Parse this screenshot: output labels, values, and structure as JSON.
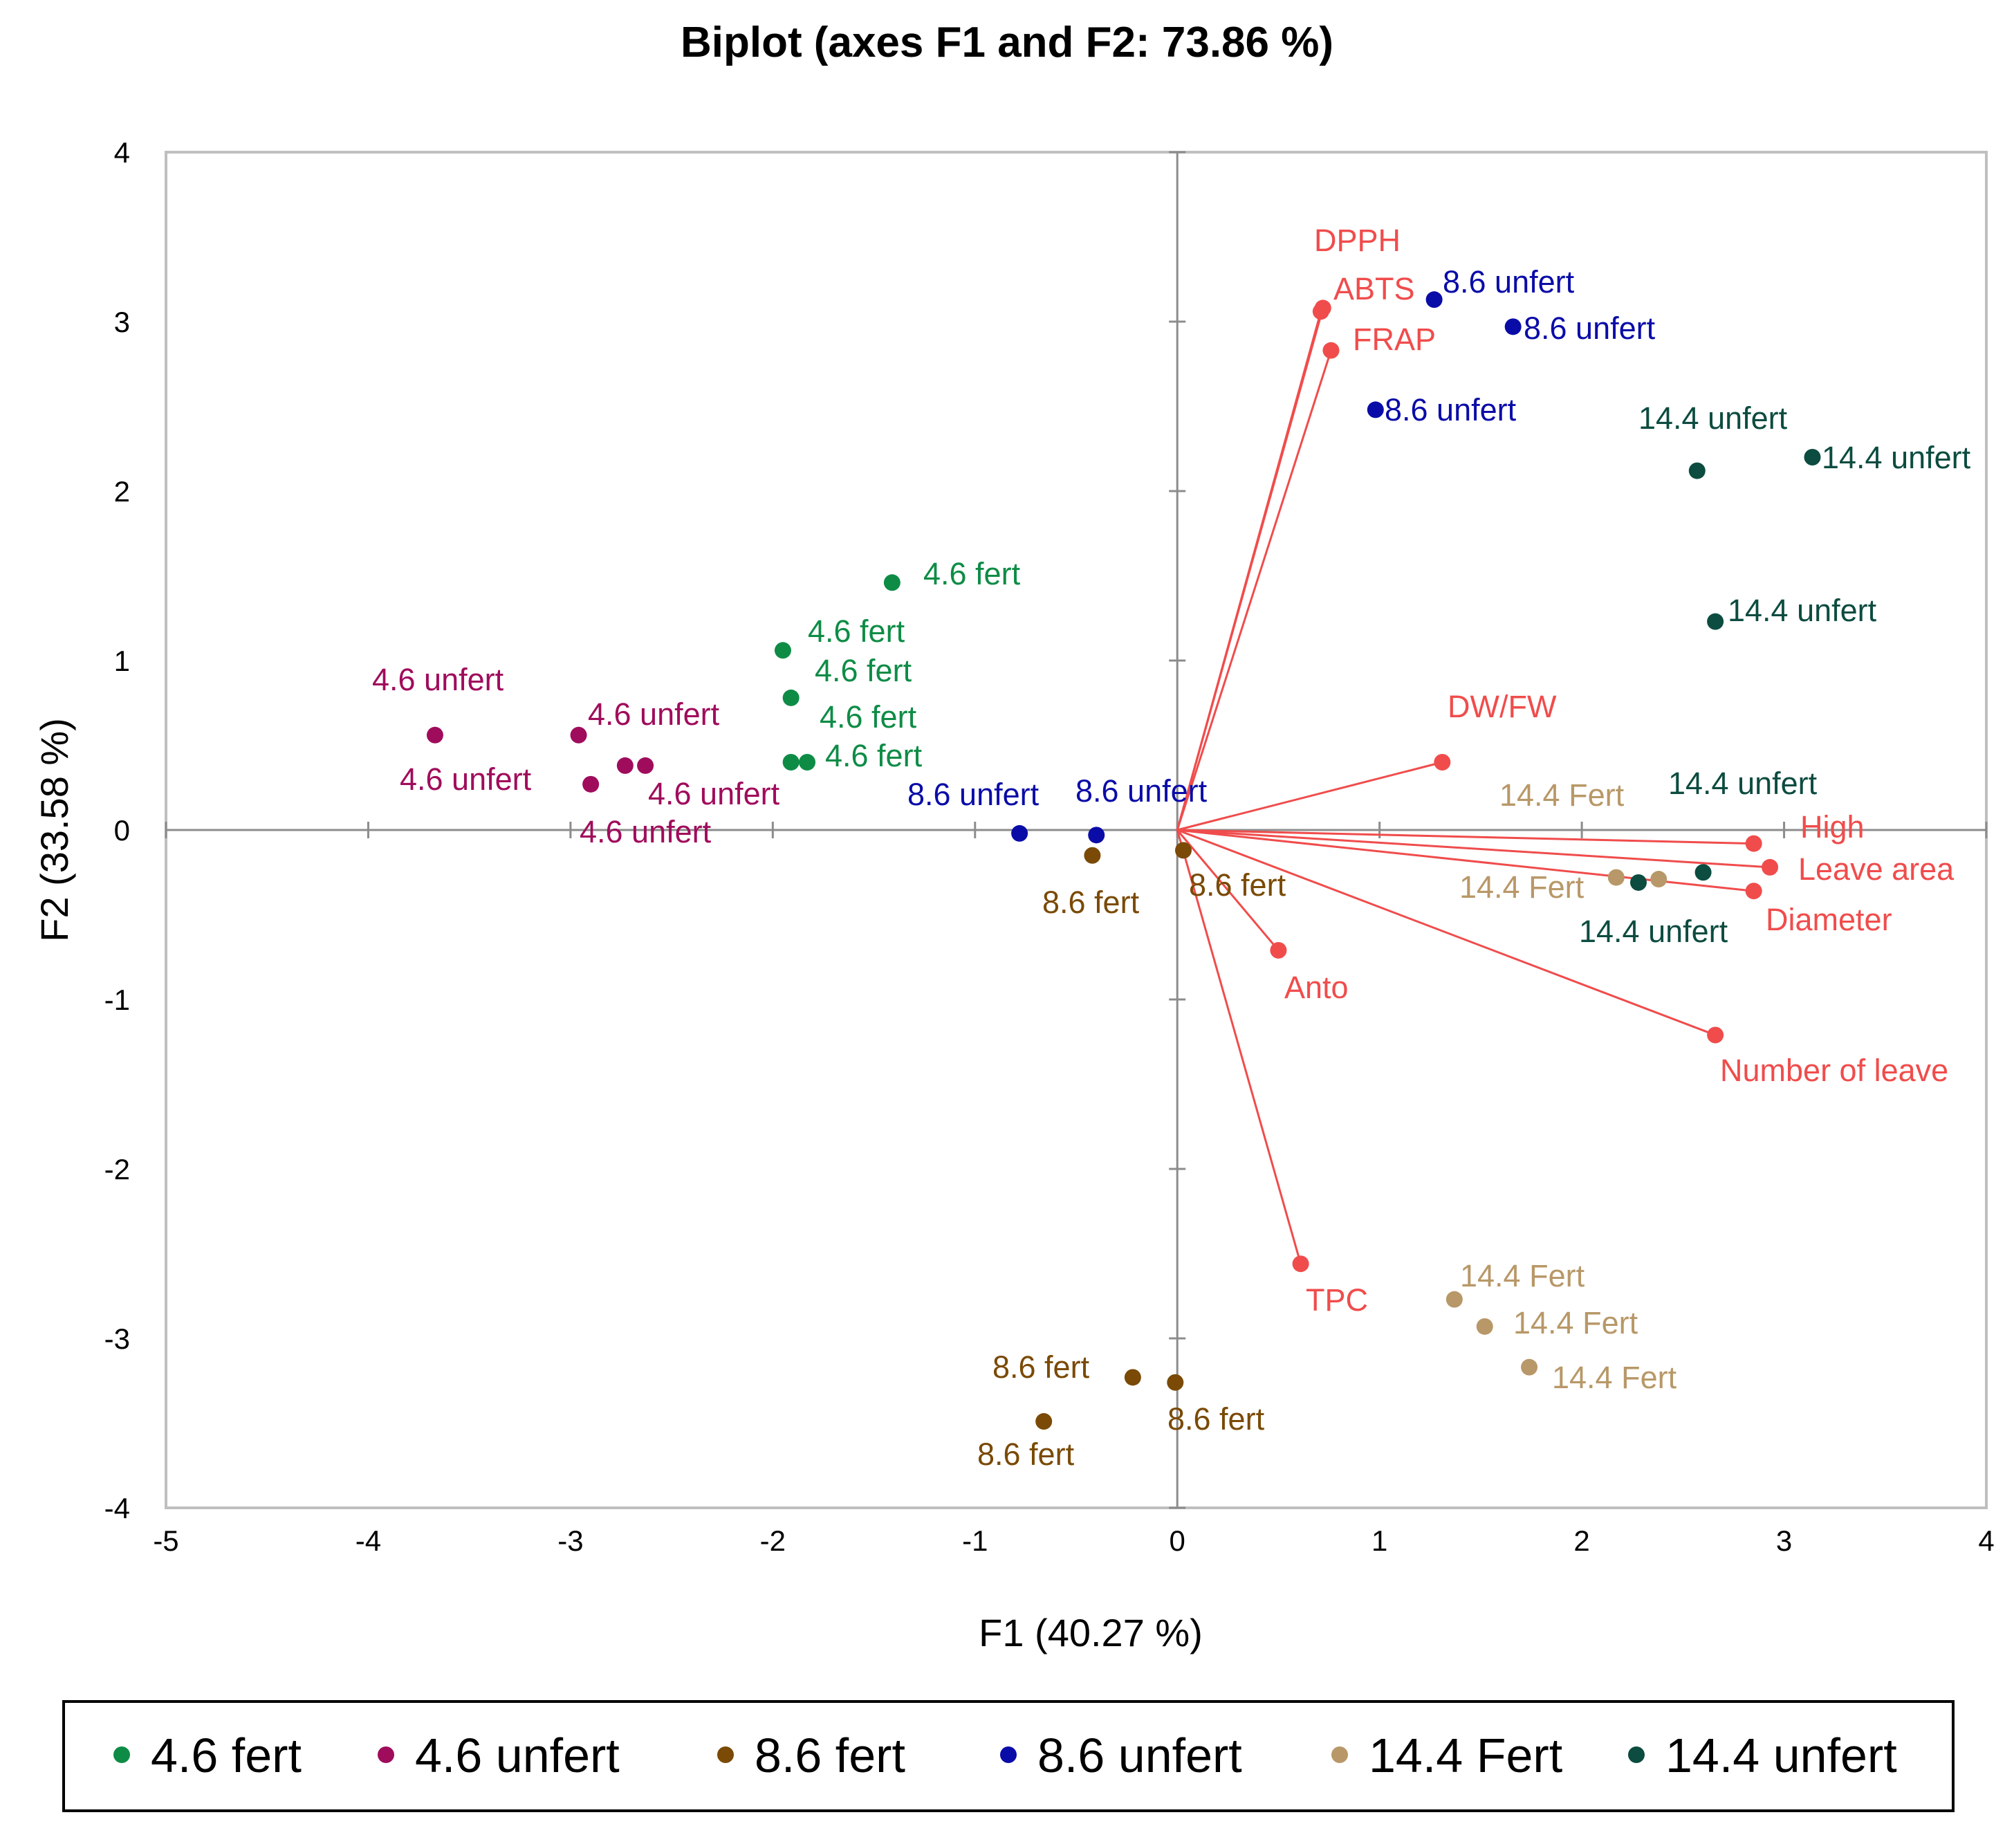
{
  "chart_data": {
    "type": "scatter",
    "subtype": "biplot",
    "title": "Biplot (axes F1 and F2: 73.86 %)",
    "xlabel": "F1 (40.27 %)",
    "ylabel": "F2 (33.58 %)",
    "xlim": [
      -5,
      4
    ],
    "ylim": [
      -4,
      4
    ],
    "xticks": [
      "-5",
      "-4",
      "-3",
      "-2",
      "-1",
      "0",
      "1",
      "2",
      "3",
      "4"
    ],
    "yticks": [
      "-4",
      "-3",
      "-2",
      "-1",
      "0",
      "1",
      "2",
      "3",
      "4"
    ],
    "legend_position": "bottom",
    "series": [
      {
        "name": "4.6 fert",
        "color": "#0e8c46",
        "points": [
          {
            "x": -1.41,
            "y": 1.46,
            "label": "4.6 fert"
          },
          {
            "x": -1.95,
            "y": 1.06,
            "label": "4.6 fert"
          },
          {
            "x": -1.91,
            "y": 0.78,
            "label": "4.6 fert"
          },
          {
            "x": -1.91,
            "y": 0.4,
            "label": "4.6 fert"
          },
          {
            "x": -1.83,
            "y": 0.4,
            "label": "4.6 fert"
          }
        ]
      },
      {
        "name": "4.6 unfert",
        "color": "#a00c5c",
        "points": [
          {
            "x": -3.67,
            "y": 0.56,
            "label": "4.6 unfert"
          },
          {
            "x": -2.96,
            "y": 0.56,
            "label": "4.6 unfert"
          },
          {
            "x": -2.9,
            "y": 0.27,
            "label": "4.6 unfert"
          },
          {
            "x": -2.73,
            "y": 0.38,
            "label": "4.6 unfert"
          },
          {
            "x": -2.63,
            "y": 0.38,
            "label": "4.6 unfert"
          }
        ]
      },
      {
        "name": "8.6 fert",
        "color": "#7a4a06",
        "points": [
          {
            "x": -0.42,
            "y": -0.15,
            "label": "8.6 fert"
          },
          {
            "x": 0.03,
            "y": -0.12,
            "label": "8.6 fert"
          },
          {
            "x": -0.22,
            "y": -3.23,
            "label": "8.6 fert"
          },
          {
            "x": -0.01,
            "y": -3.26,
            "label": "8.6 fert"
          },
          {
            "x": -0.66,
            "y": -3.49,
            "label": "8.6 fert"
          }
        ]
      },
      {
        "name": "8.6 unfert",
        "color": "#0a0ca8",
        "points": [
          {
            "x": 1.27,
            "y": 3.13,
            "label": "8.6 unfert"
          },
          {
            "x": 1.66,
            "y": 2.97,
            "label": "8.6 unfert"
          },
          {
            "x": 0.98,
            "y": 2.48,
            "label": "8.6 unfert"
          },
          {
            "x": -0.78,
            "y": -0.02,
            "label": "8.6 unfert"
          },
          {
            "x": -0.4,
            "y": -0.03,
            "label": "8.6 unfert"
          }
        ]
      },
      {
        "name": "14.4 Fert",
        "color": "#b89868",
        "points": [
          {
            "x": 2.17,
            "y": -0.28,
            "label": "14.4 Fert"
          },
          {
            "x": 2.38,
            "y": -0.29,
            "label": "14.4 Fert"
          },
          {
            "x": 1.37,
            "y": -2.77,
            "label": "14.4 Fert"
          },
          {
            "x": 1.52,
            "y": -2.93,
            "label": "14.4 Fert"
          },
          {
            "x": 1.74,
            "y": -3.17,
            "label": "14.4 Fert"
          }
        ]
      },
      {
        "name": "14.4 unfert",
        "color": "#0d4c40",
        "points": [
          {
            "x": 2.57,
            "y": 2.12,
            "label": "14.4 unfert"
          },
          {
            "x": 3.14,
            "y": 2.2,
            "label": "14.4 unfert"
          },
          {
            "x": 2.66,
            "y": 1.23,
            "label": "14.4 unfert"
          },
          {
            "x": 2.6,
            "y": -0.25,
            "label": "14.4 unfert"
          },
          {
            "x": 2.28,
            "y": -0.31,
            "label": "14.4 unfert"
          }
        ]
      }
    ],
    "variables": {
      "color": "#f04c4c",
      "vectors": [
        {
          "name": "DPPH",
          "x": 0.72,
          "y": 3.08
        },
        {
          "name": "ABTS",
          "x": 0.71,
          "y": 3.06
        },
        {
          "name": "FRAP",
          "x": 0.76,
          "y": 2.83
        },
        {
          "name": "DW/FW",
          "x": 1.31,
          "y": 0.4
        },
        {
          "name": "High",
          "x": 2.85,
          "y": -0.08
        },
        {
          "name": "Leave area",
          "x": 2.93,
          "y": -0.22
        },
        {
          "name": "Diameter",
          "x": 2.85,
          "y": -0.36
        },
        {
          "name": "Number of leave",
          "x": 2.66,
          "y": -1.21
        },
        {
          "name": "Anto",
          "x": 0.5,
          "y": -0.71
        },
        {
          "name": "TPC",
          "x": 0.61,
          "y": -2.56
        }
      ]
    }
  }
}
